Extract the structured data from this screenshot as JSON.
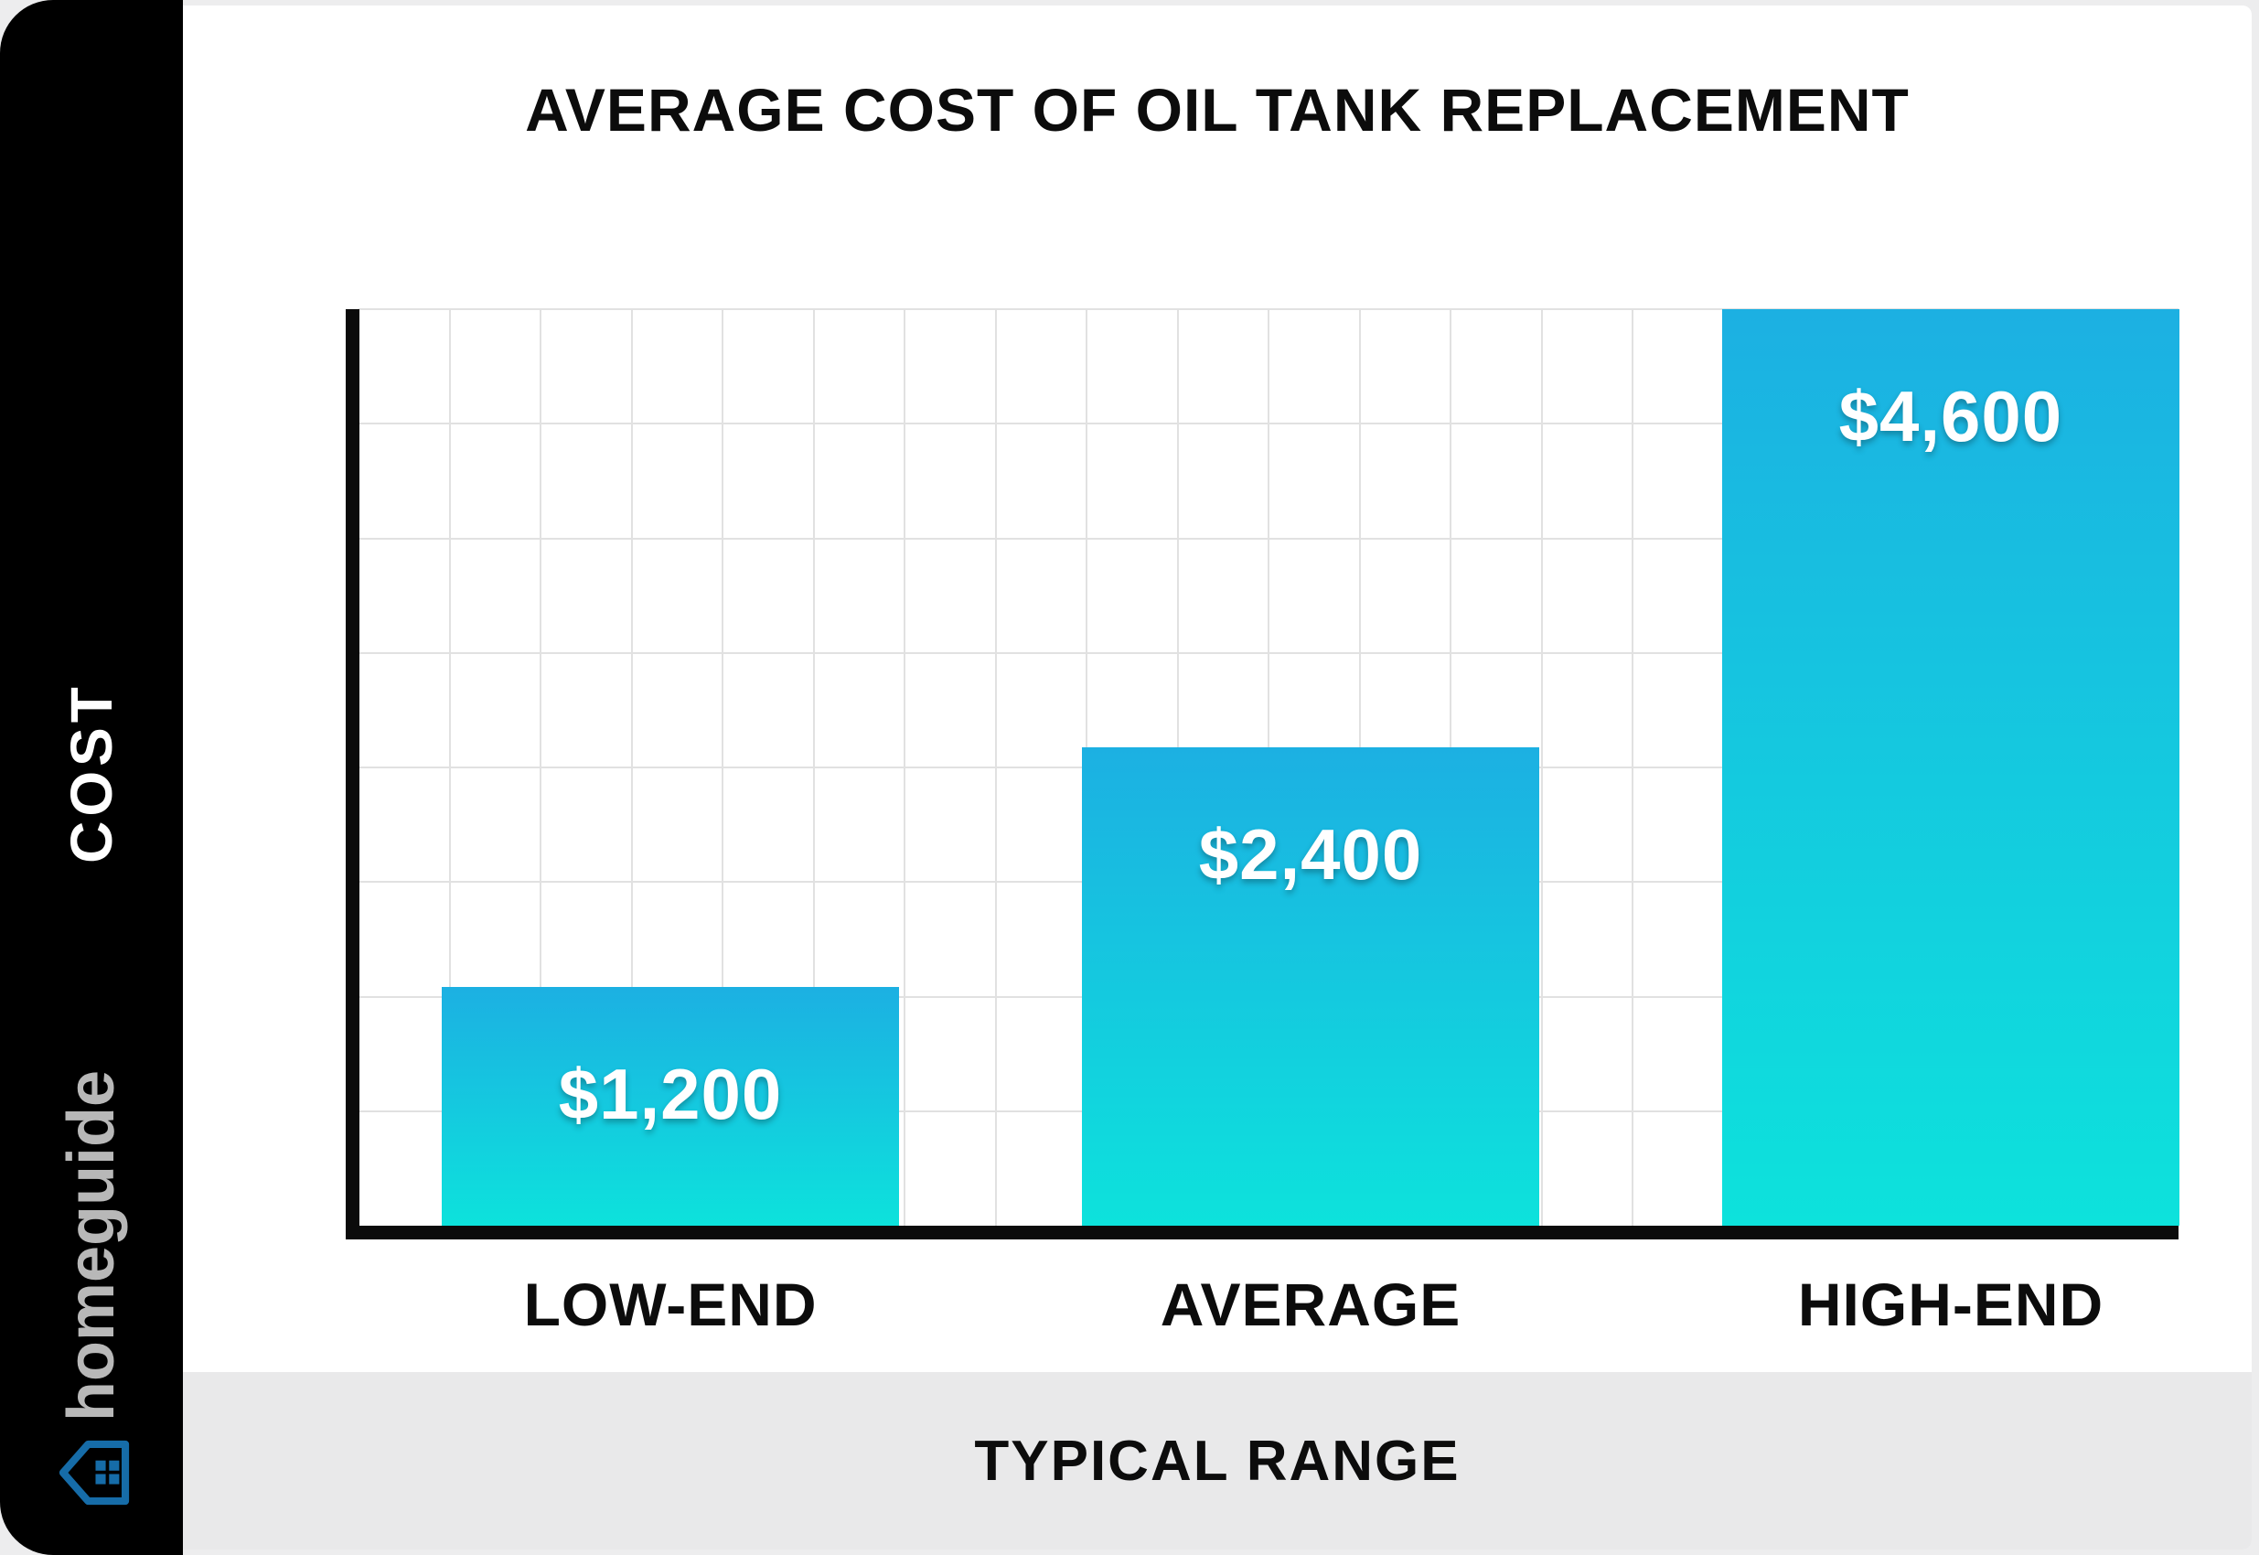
{
  "sidebar": {
    "axis_label": "COST",
    "brand": "homeguide",
    "brand_color": "#b8b8b8",
    "logo_icon": "house-icon",
    "logo_color": "#166ca8"
  },
  "chart_data": {
    "type": "bar",
    "title": "AVERAGE COST OF OIL TANK REPLACEMENT",
    "categories": [
      "LOW-END",
      "AVERAGE",
      "HIGH-END"
    ],
    "values": [
      1200,
      2400,
      4600
    ],
    "value_labels": [
      "$1,200",
      "$2,400",
      "$4,600"
    ],
    "ylabel": "COST",
    "xlabel": "TYPICAL RANGE",
    "ylim": [
      0,
      4600
    ],
    "grid": {
      "rows": 8,
      "cols": 20,
      "color": "#e1e1e1",
      "visible": true
    },
    "legend_position": "none",
    "bar_color_top": "#1cb0e2",
    "bar_color_bottom": "#0de2dc",
    "axis_color": "#0b0b0b",
    "value_label_color": "#ffffff"
  }
}
